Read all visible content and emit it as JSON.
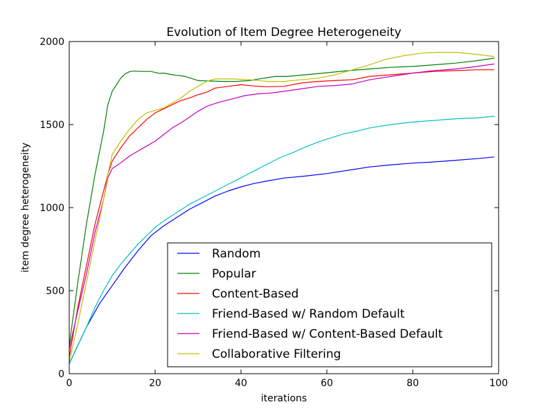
{
  "chart_data": {
    "type": "line",
    "title": "Evolution of Item Degree Heterogeneity",
    "xlabel": "iterations",
    "ylabel": "item degree heterogeneity",
    "xlim": [
      0,
      100
    ],
    "ylim": [
      0,
      2000
    ],
    "xticks": [
      0,
      20,
      40,
      60,
      80,
      100
    ],
    "yticks": [
      0,
      500,
      1000,
      1500,
      2000
    ],
    "grid": false,
    "legend_position": "lower-right",
    "series": [
      {
        "name": "Random",
        "color": "#0000ff",
        "points": [
          [
            0,
            60
          ],
          [
            2,
            170
          ],
          [
            4,
            280
          ],
          [
            7,
            420
          ],
          [
            10,
            530
          ],
          [
            13,
            640
          ],
          [
            16,
            740
          ],
          [
            19,
            830
          ],
          [
            22,
            890
          ],
          [
            25,
            940
          ],
          [
            28,
            990
          ],
          [
            31,
            1030
          ],
          [
            34,
            1070
          ],
          [
            37,
            1100
          ],
          [
            40,
            1125
          ],
          [
            43,
            1145
          ],
          [
            46,
            1160
          ],
          [
            50,
            1178
          ],
          [
            55,
            1190
          ],
          [
            60,
            1205
          ],
          [
            65,
            1225
          ],
          [
            70,
            1245
          ],
          [
            75,
            1258
          ],
          [
            80,
            1268
          ],
          [
            85,
            1275
          ],
          [
            90,
            1285
          ],
          [
            95,
            1295
          ],
          [
            99,
            1305
          ]
        ]
      },
      {
        "name": "Popular",
        "color": "#008000",
        "points": [
          [
            0,
            170
          ],
          [
            2,
            550
          ],
          [
            4,
            900
          ],
          [
            6,
            1200
          ],
          [
            8,
            1460
          ],
          [
            9,
            1620
          ],
          [
            10,
            1700
          ],
          [
            11,
            1740
          ],
          [
            12,
            1780
          ],
          [
            13,
            1805
          ],
          [
            14,
            1818
          ],
          [
            15,
            1822
          ],
          [
            17,
            1820
          ],
          [
            19,
            1820
          ],
          [
            21,
            1808
          ],
          [
            22,
            1810
          ],
          [
            24,
            1800
          ],
          [
            27,
            1790
          ],
          [
            30,
            1765
          ],
          [
            33,
            1762
          ],
          [
            36,
            1760
          ],
          [
            39,
            1760
          ],
          [
            42,
            1765
          ],
          [
            45,
            1778
          ],
          [
            48,
            1790
          ],
          [
            51,
            1790
          ],
          [
            55,
            1800
          ],
          [
            60,
            1812
          ],
          [
            65,
            1825
          ],
          [
            70,
            1835
          ],
          [
            75,
            1845
          ],
          [
            80,
            1850
          ],
          [
            85,
            1860
          ],
          [
            90,
            1870
          ],
          [
            95,
            1885
          ],
          [
            99,
            1900
          ]
        ]
      },
      {
        "name": "Content-Based",
        "color": "#ff0000",
        "points": [
          [
            0,
            100
          ],
          [
            2,
            400
          ],
          [
            4,
            650
          ],
          [
            6,
            900
          ],
          [
            8,
            1100
          ],
          [
            9,
            1200
          ],
          [
            10,
            1280
          ],
          [
            12,
            1360
          ],
          [
            14,
            1430
          ],
          [
            16,
            1480
          ],
          [
            18,
            1530
          ],
          [
            20,
            1570
          ],
          [
            22,
            1595
          ],
          [
            24,
            1620
          ],
          [
            26,
            1645
          ],
          [
            28,
            1660
          ],
          [
            30,
            1680
          ],
          [
            32,
            1695
          ],
          [
            34,
            1720
          ],
          [
            37,
            1730
          ],
          [
            40,
            1740
          ],
          [
            43,
            1732
          ],
          [
            46,
            1728
          ],
          [
            50,
            1730
          ],
          [
            54,
            1750
          ],
          [
            58,
            1760
          ],
          [
            62,
            1765
          ],
          [
            66,
            1770
          ],
          [
            70,
            1790
          ],
          [
            75,
            1800
          ],
          [
            80,
            1810
          ],
          [
            85,
            1820
          ],
          [
            90,
            1825
          ],
          [
            95,
            1830
          ],
          [
            99,
            1830
          ]
        ]
      },
      {
        "name": "Friend-Based w/ Random Default",
        "color": "#00bfbf",
        "points": [
          [
            0,
            60
          ],
          [
            2,
            170
          ],
          [
            4,
            280
          ],
          [
            6,
            400
          ],
          [
            8,
            500
          ],
          [
            10,
            590
          ],
          [
            12,
            660
          ],
          [
            14,
            720
          ],
          [
            16,
            780
          ],
          [
            18,
            830
          ],
          [
            20,
            880
          ],
          [
            22,
            920
          ],
          [
            25,
            970
          ],
          [
            28,
            1020
          ],
          [
            31,
            1060
          ],
          [
            34,
            1100
          ],
          [
            37,
            1140
          ],
          [
            40,
            1180
          ],
          [
            43,
            1220
          ],
          [
            46,
            1260
          ],
          [
            49,
            1300
          ],
          [
            52,
            1330
          ],
          [
            55,
            1365
          ],
          [
            58,
            1395
          ],
          [
            61,
            1420
          ],
          [
            64,
            1445
          ],
          [
            67,
            1460
          ],
          [
            70,
            1480
          ],
          [
            75,
            1500
          ],
          [
            80,
            1515
          ],
          [
            85,
            1525
          ],
          [
            90,
            1535
          ],
          [
            95,
            1540
          ],
          [
            99,
            1550
          ]
        ]
      },
      {
        "name": "Friend-Based w/ Content-Based Default",
        "color": "#bf00bf",
        "points": [
          [
            0,
            150
          ],
          [
            2,
            380
          ],
          [
            4,
            600
          ],
          [
            6,
            850
          ],
          [
            8,
            1050
          ],
          [
            9,
            1180
          ],
          [
            10,
            1235
          ],
          [
            12,
            1270
          ],
          [
            14,
            1310
          ],
          [
            16,
            1340
          ],
          [
            18,
            1370
          ],
          [
            20,
            1400
          ],
          [
            22,
            1440
          ],
          [
            24,
            1480
          ],
          [
            26,
            1510
          ],
          [
            28,
            1545
          ],
          [
            30,
            1580
          ],
          [
            32,
            1610
          ],
          [
            35,
            1635
          ],
          [
            38,
            1655
          ],
          [
            41,
            1675
          ],
          [
            44,
            1685
          ],
          [
            47,
            1690
          ],
          [
            50,
            1700
          ],
          [
            54,
            1715
          ],
          [
            58,
            1730
          ],
          [
            62,
            1735
          ],
          [
            66,
            1745
          ],
          [
            70,
            1770
          ],
          [
            75,
            1790
          ],
          [
            80,
            1810
          ],
          [
            85,
            1825
          ],
          [
            90,
            1835
          ],
          [
            95,
            1850
          ],
          [
            99,
            1865
          ]
        ]
      },
      {
        "name": "Collaborative Filtering",
        "color": "#bfbf00",
        "points": [
          [
            0,
            70
          ],
          [
            2,
            300
          ],
          [
            4,
            550
          ],
          [
            6,
            800
          ],
          [
            8,
            1050
          ],
          [
            9,
            1200
          ],
          [
            10,
            1320
          ],
          [
            12,
            1400
          ],
          [
            14,
            1470
          ],
          [
            16,
            1530
          ],
          [
            18,
            1570
          ],
          [
            20,
            1585
          ],
          [
            22,
            1600
          ],
          [
            24,
            1630
          ],
          [
            26,
            1660
          ],
          [
            28,
            1700
          ],
          [
            30,
            1730
          ],
          [
            32,
            1760
          ],
          [
            34,
            1775
          ],
          [
            38,
            1775
          ],
          [
            42,
            1770
          ],
          [
            46,
            1760
          ],
          [
            50,
            1760
          ],
          [
            54,
            1770
          ],
          [
            58,
            1780
          ],
          [
            62,
            1800
          ],
          [
            66,
            1830
          ],
          [
            70,
            1860
          ],
          [
            74,
            1895
          ],
          [
            78,
            1915
          ],
          [
            82,
            1930
          ],
          [
            86,
            1935
          ],
          [
            90,
            1935
          ],
          [
            94,
            1925
          ],
          [
            99,
            1910
          ]
        ]
      }
    ]
  }
}
